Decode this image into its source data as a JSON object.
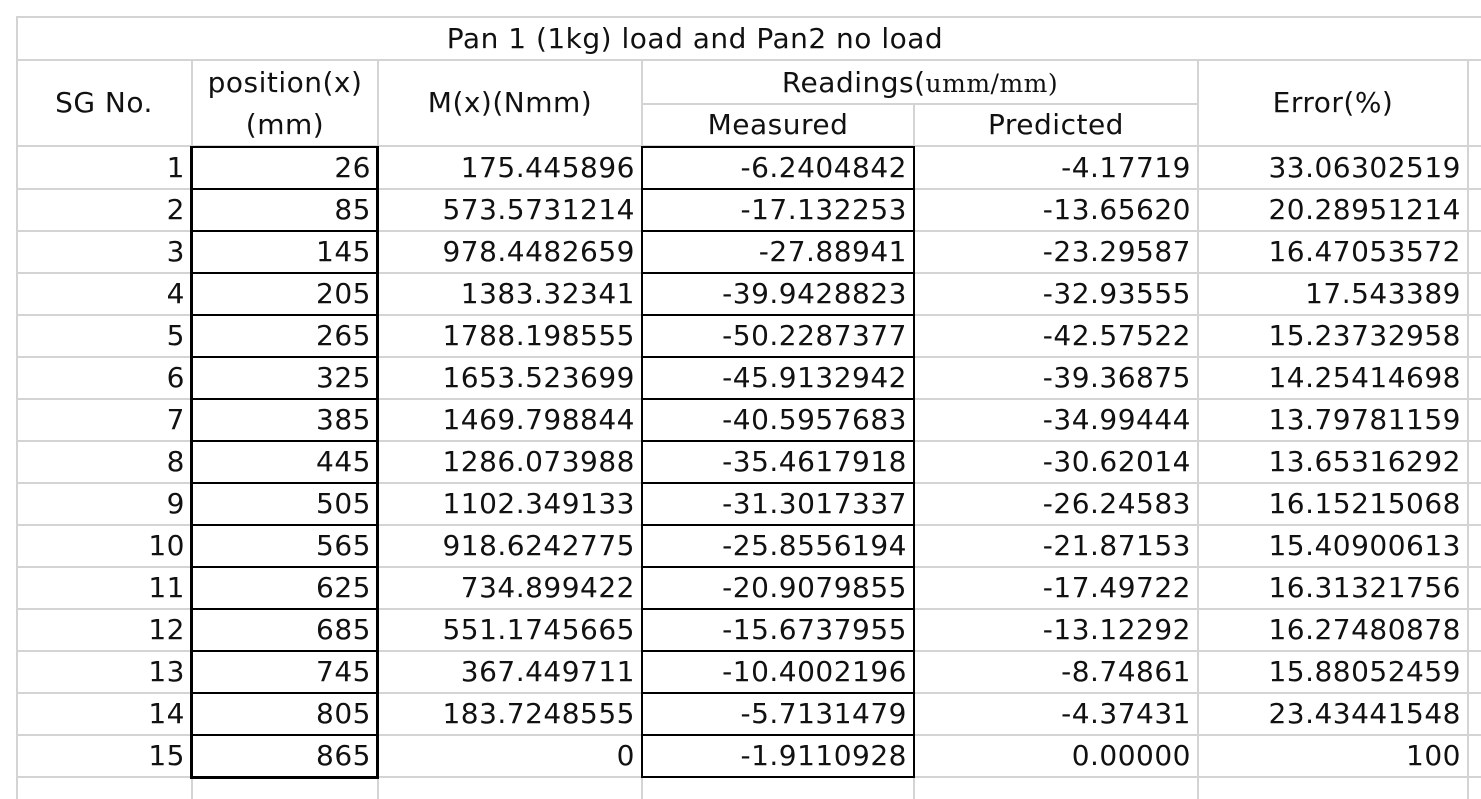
{
  "title": "Pan 1 (1kg) load and Pan2 no load",
  "headers": {
    "sg_no": "SG No.",
    "position_line1": "position(x)",
    "position_line2": "(mm)",
    "moment": "M(x)(Nmm)",
    "readings_prefix": "Readings(",
    "readings_unit": "umm/mm)",
    "measured": "Measured",
    "predicted": "Predicted",
    "error": "Error(%)"
  },
  "rows": [
    {
      "sg": "1",
      "position": "26",
      "moment": "175.445896",
      "measured": "-6.2404842",
      "predicted": "-4.17719",
      "error": "33.06302519"
    },
    {
      "sg": "2",
      "position": "85",
      "moment": "573.5731214",
      "measured": "-17.132253",
      "predicted": "-13.65620",
      "error": "20.28951214"
    },
    {
      "sg": "3",
      "position": "145",
      "moment": "978.4482659",
      "measured": "-27.88941",
      "predicted": "-23.29587",
      "error": "16.47053572"
    },
    {
      "sg": "4",
      "position": "205",
      "moment": "1383.32341",
      "measured": "-39.9428823",
      "predicted": "-32.93555",
      "error": "17.543389"
    },
    {
      "sg": "5",
      "position": "265",
      "moment": "1788.198555",
      "measured": "-50.2287377",
      "predicted": "-42.57522",
      "error": "15.23732958"
    },
    {
      "sg": "6",
      "position": "325",
      "moment": "1653.523699",
      "measured": "-45.9132942",
      "predicted": "-39.36875",
      "error": "14.25414698"
    },
    {
      "sg": "7",
      "position": "385",
      "moment": "1469.798844",
      "measured": "-40.5957683",
      "predicted": "-34.99444",
      "error": "13.79781159"
    },
    {
      "sg": "8",
      "position": "445",
      "moment": "1286.073988",
      "measured": "-35.4617918",
      "predicted": "-30.62014",
      "error": "13.65316292"
    },
    {
      "sg": "9",
      "position": "505",
      "moment": "1102.349133",
      "measured": "-31.3017337",
      "predicted": "-26.24583",
      "error": "16.15215068"
    },
    {
      "sg": "10",
      "position": "565",
      "moment": "918.6242775",
      "measured": "-25.8556194",
      "predicted": "-21.87153",
      "error": "15.40900613"
    },
    {
      "sg": "11",
      "position": "625",
      "moment": "734.899422",
      "measured": "-20.9079855",
      "predicted": "-17.49722",
      "error": "16.31321756"
    },
    {
      "sg": "12",
      "position": "685",
      "moment": "551.1745665",
      "measured": "-15.6737955",
      "predicted": "-13.12292",
      "error": "16.27480878"
    },
    {
      "sg": "13",
      "position": "745",
      "moment": "367.449711",
      "measured": "-10.4002196",
      "predicted": "-8.74861",
      "error": "15.88052459"
    },
    {
      "sg": "14",
      "position": "805",
      "moment": "183.7248555",
      "measured": "-5.7131479",
      "predicted": "-4.37431",
      "error": "23.43441548"
    },
    {
      "sg": "15",
      "position": "865",
      "moment": "0",
      "measured": "-1.9110928",
      "predicted": "0.00000",
      "error": "100"
    }
  ]
}
